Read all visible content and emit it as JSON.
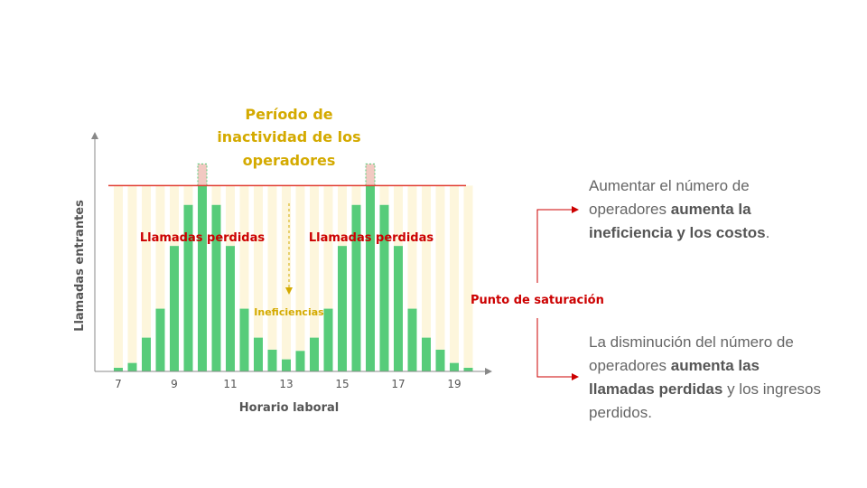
{
  "chart_data": {
    "type": "bar",
    "title_lines": [
      "Período de",
      "inactividad de los",
      "operadores"
    ],
    "xlabel": "Horario laboral",
    "ylabel": "Llamadas entrantes",
    "x_ticks": [
      7,
      9,
      11,
      13,
      15,
      17,
      19
    ],
    "saturation": {
      "label": "Punto de saturación",
      "value": 77
    },
    "ylim": [
      0,
      100
    ],
    "annotations": {
      "lost_calls_left": "Llamadas perdidas",
      "lost_calls_right": "Llamadas perdidas",
      "inefficiencies": "Ineficiencias"
    },
    "series": {
      "x": [
        7,
        7.5,
        8,
        8.5,
        9,
        9.5,
        10,
        10.5,
        11,
        11.5,
        12,
        12.5,
        13,
        13.5,
        14,
        14.5,
        15,
        15.5,
        16,
        16.5,
        17,
        17.5,
        18,
        18.5,
        19,
        19.5
      ],
      "values": [
        1.5,
        3.5,
        14,
        26,
        52,
        69,
        86,
        69,
        52,
        26,
        14,
        9,
        5,
        8.5,
        14,
        26,
        52,
        69,
        86,
        69,
        52,
        26,
        14,
        9,
        3.5,
        1.5
      ]
    },
    "colors": {
      "bar": "#57cc7a",
      "lost": "#f2c9c2",
      "inefficiency": "#fdf6dc",
      "saturation_line": "#e03c31",
      "red_text": "#cc0000",
      "gold_text": "#d4aa00",
      "arrow": "#cc0000"
    }
  },
  "notes": [
    {
      "segments": [
        {
          "text": "Aumentar el número de operadores ",
          "bold": false
        },
        {
          "text": "aumenta la ineficiencia y los costos",
          "bold": true
        },
        {
          "text": ".",
          "bold": false
        }
      ]
    },
    {
      "segments": [
        {
          "text": "La disminución del número de operadores ",
          "bold": false
        },
        {
          "text": "aumenta las llamadas perdidas",
          "bold": true
        },
        {
          "text": " y los ingresos perdidos.",
          "bold": false
        }
      ]
    }
  ]
}
